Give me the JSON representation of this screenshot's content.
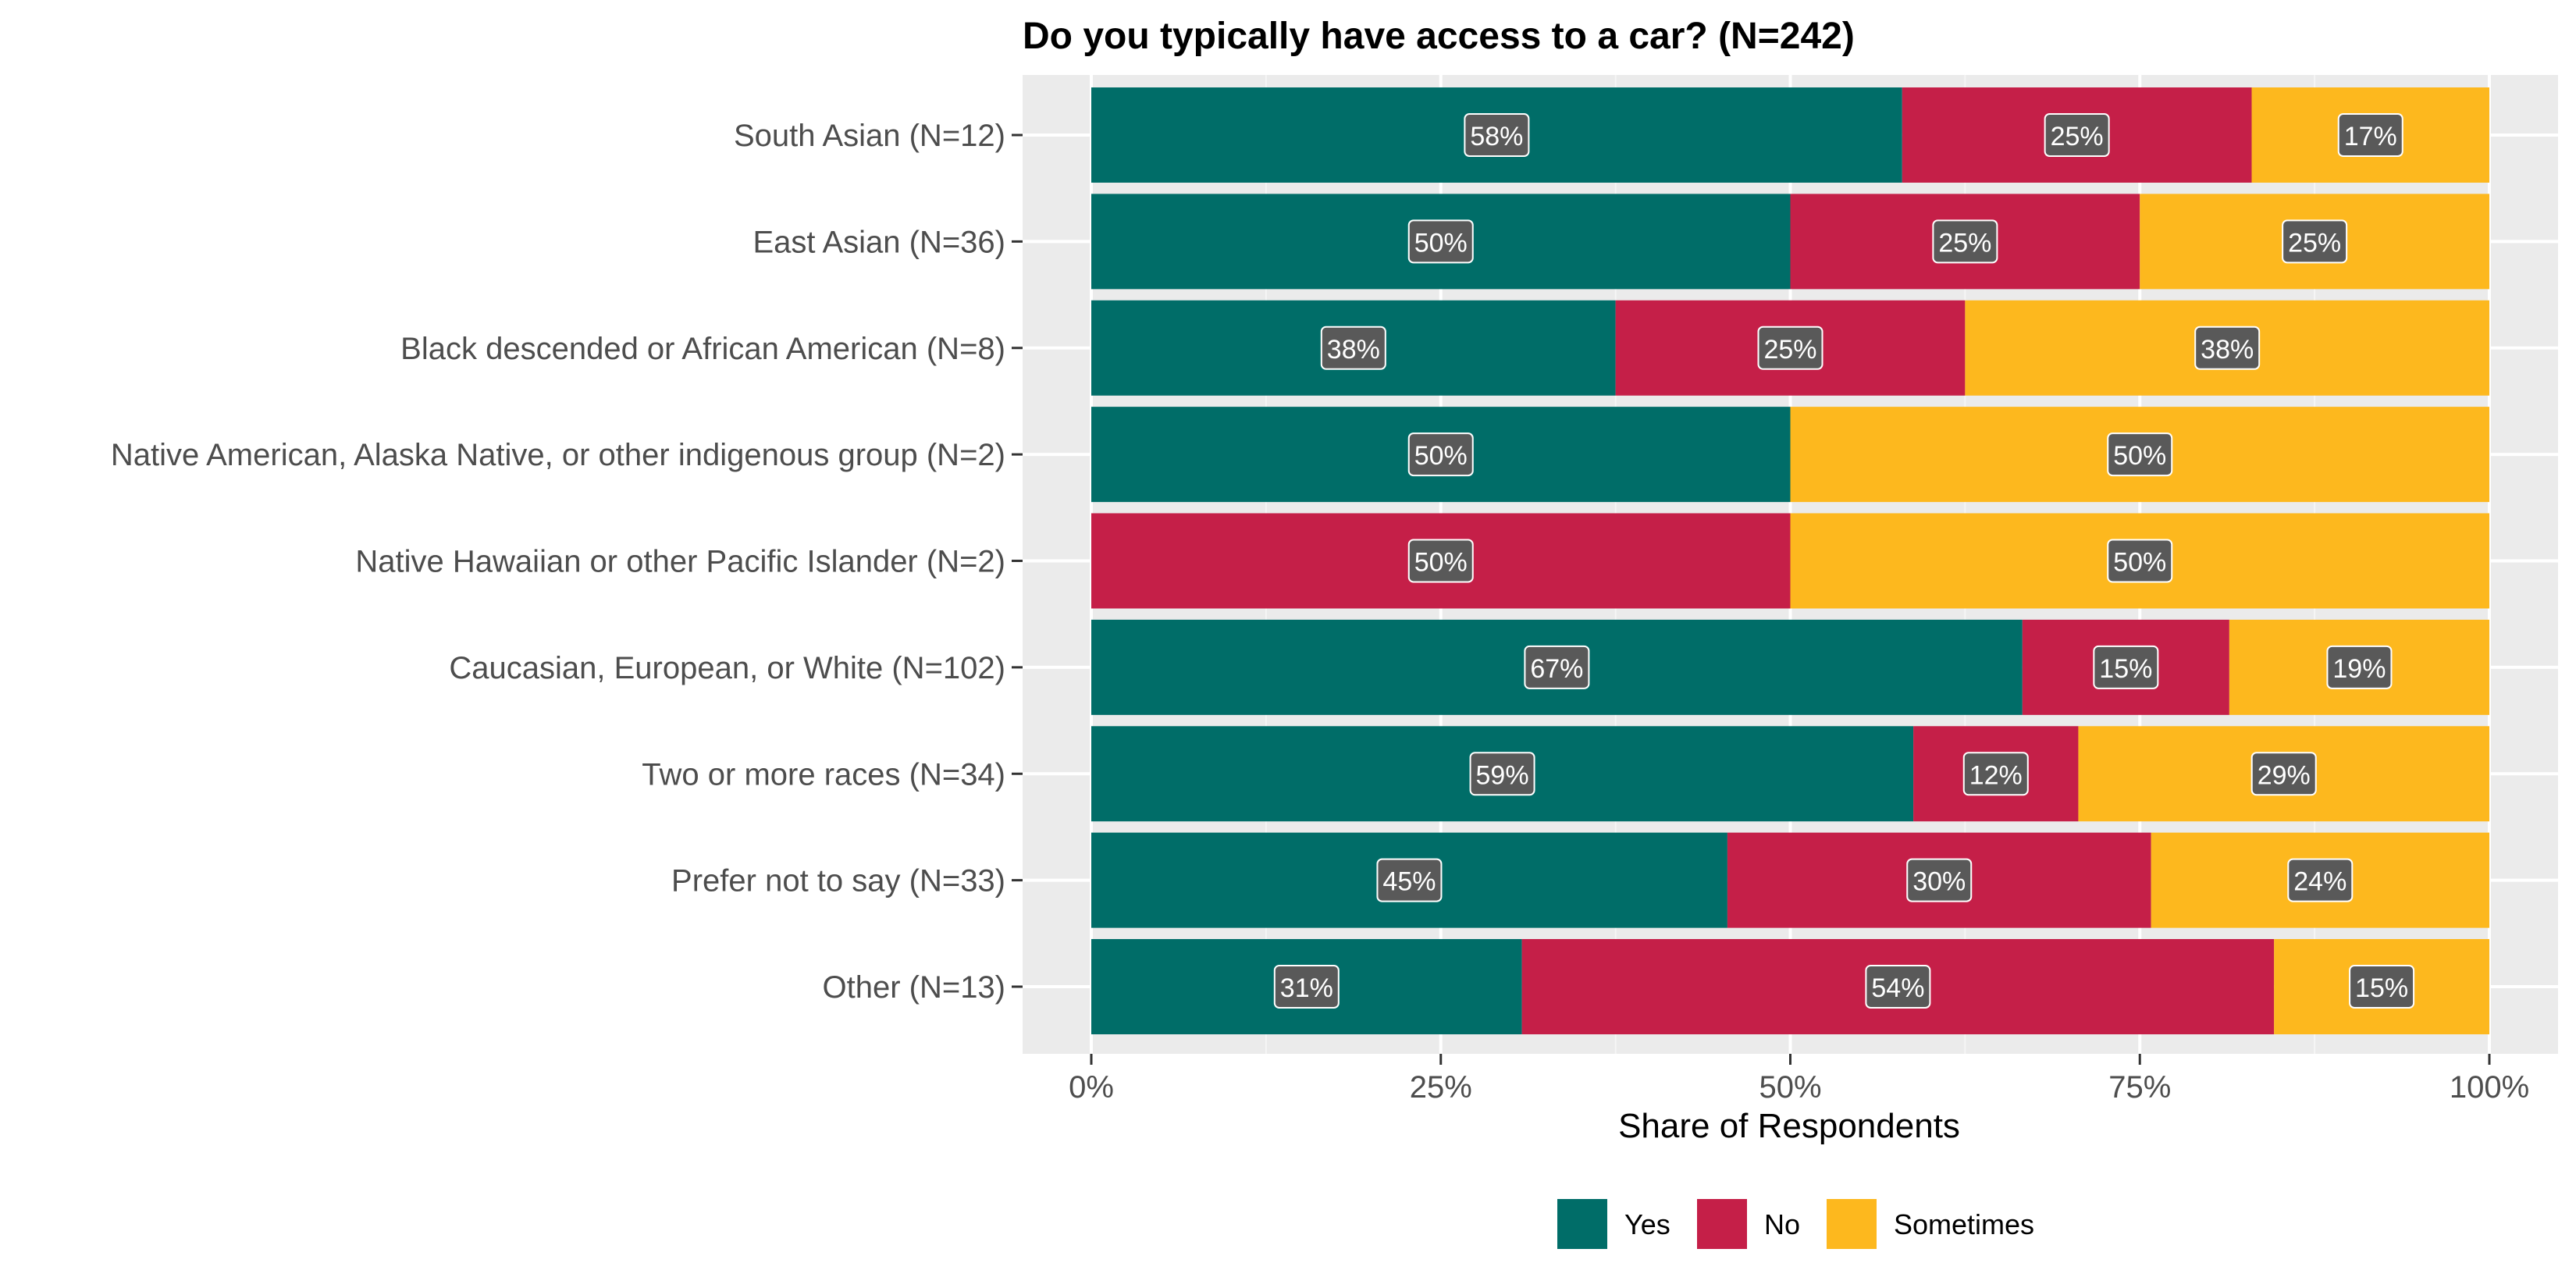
{
  "chart_data": {
    "type": "bar",
    "orientation": "horizontal",
    "stacked": true,
    "title": "Do you typically have access to a car? (N=242)",
    "xlabel": "Share of Respondents",
    "ylabel": "",
    "xlim": [
      0,
      1
    ],
    "x_ticks": [
      "0%",
      "25%",
      "50%",
      "75%",
      "100%"
    ],
    "grid": true,
    "legend_position": "bottom",
    "categories": [
      "South Asian (N=12)",
      "East Asian (N=36)",
      "Black descended or African American (N=8)",
      "Native American, Alaska Native, or other indigenous group (N=2)",
      "Native Hawaiian or other Pacific Islander (N=2)",
      "Caucasian, European, or White (N=102)",
      "Two or more races (N=34)",
      "Prefer not to say (N=33)",
      "Other (N=13)"
    ],
    "series": [
      {
        "name": "Yes",
        "color": "#006d68",
        "values": [
          0.58,
          0.5,
          0.375,
          0.5,
          0,
          0.666,
          0.588,
          0.455,
          0.308
        ],
        "labels": [
          "58%",
          "50%",
          "38%",
          "50%",
          "",
          "67%",
          "59%",
          "45%",
          "31%"
        ]
      },
      {
        "name": "No",
        "color": "#c51f48",
        "values": [
          0.25,
          0.25,
          0.25,
          0,
          0.5,
          0.148,
          0.118,
          0.303,
          0.538
        ],
        "labels": [
          "25%",
          "25%",
          "25%",
          "",
          "50%",
          "15%",
          "12%",
          "30%",
          "54%"
        ]
      },
      {
        "name": "Sometimes",
        "color": "#fdb81e",
        "values": [
          0.17,
          0.25,
          0.375,
          0.5,
          0.5,
          0.186,
          0.294,
          0.242,
          0.154
        ],
        "labels": [
          "17%",
          "25%",
          "38%",
          "50%",
          "50%",
          "19%",
          "29%",
          "24%",
          "15%"
        ]
      }
    ],
    "colors": {
      "panel_background": "#ebebeb",
      "grid_major": "#ffffff",
      "grid_minor": "#f5f5f5",
      "label_box": "#595959"
    }
  }
}
